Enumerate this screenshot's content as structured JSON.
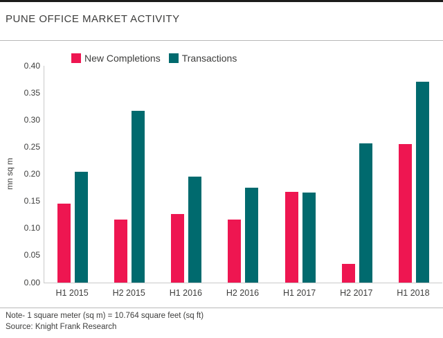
{
  "header": {
    "title": "PUNE OFFICE MARKET ACTIVITY"
  },
  "footer": {
    "note": "Note- 1 square meter (sq m) = 10.764 square feet (sq ft)",
    "source": "Source: Knight Frank Research"
  },
  "colors": {
    "new_completions": "#ee1651",
    "transactions": "#006a6e",
    "axis_line": "#c9c9c9",
    "text": "#3d3d3c",
    "divider": "#b8b8b8",
    "top_border": "#1b1b1a"
  },
  "chart_data": {
    "type": "bar",
    "title": "PUNE OFFICE MARKET ACTIVITY",
    "categories": [
      "H1 2015",
      "H2 2015",
      "H1 2016",
      "H2 2016",
      "H1 2017",
      "H2 2017",
      "H1 2018"
    ],
    "series": [
      {
        "name": "New Completions",
        "color": "#ee1651",
        "values": [
          0.146,
          0.116,
          0.126,
          0.116,
          0.167,
          0.035,
          0.256
        ]
      },
      {
        "name": "Transactions",
        "color": "#006a6e",
        "values": [
          0.205,
          0.317,
          0.195,
          0.175,
          0.166,
          0.257,
          0.37
        ]
      }
    ],
    "xlabel": "",
    "ylabel": "mn sq m",
    "ylim": [
      0,
      0.4
    ],
    "yticks": [
      "0.40",
      "0.35",
      "0.30",
      "0.25",
      "0.20",
      "0.15",
      "0.10",
      "0.05",
      "0.00"
    ],
    "grid": false,
    "legend_position": "top"
  }
}
